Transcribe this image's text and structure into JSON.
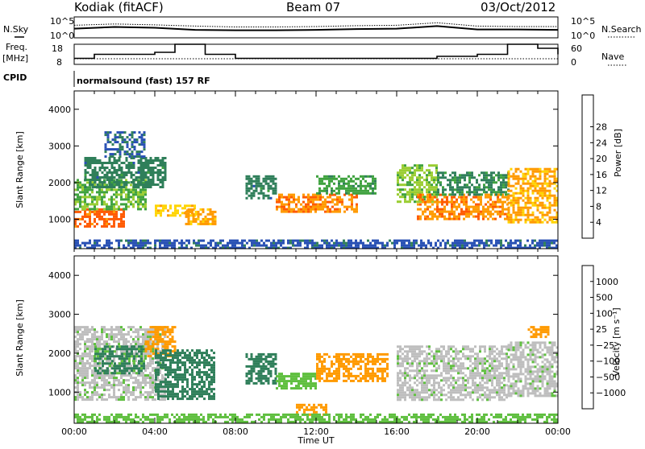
{
  "header": {
    "station": "Kodiak (fitACF)",
    "beam": "Beam 07",
    "date": "03/Oct/2012"
  },
  "strip_labels": {
    "nsky": "N.Sky",
    "nsearch": "N.Search",
    "freq_line1": "Freq.",
    "freq_line2": "[MHz]",
    "nave": "Nave",
    "cpid": "CPID",
    "mode": "normalsound (fast) 157 RF",
    "noise_left_top": "10^5",
    "noise_left_bottom": "10^0",
    "noise_right_top": "10^5",
    "noise_right_bottom": "10^0",
    "freq_left_top": "18",
    "freq_left_bottom": "8",
    "nave_right_top": "60",
    "nave_right_bottom": "0"
  },
  "colors": {
    "power_scale": [
      "#1a1aff",
      "#2850b4",
      "#2f7f5a",
      "#3fa23f",
      "#9acd32",
      "#ffd400",
      "#ff9a00",
      "#ff5a00",
      "#e00000"
    ],
    "velocity_scale": [
      "#e00000",
      "#ff5a00",
      "#ff9a00",
      "#bebebe",
      "#bebebe",
      "#5fbf3f",
      "#2f7f5a",
      "#1f5fa0",
      "#2020c0"
    ]
  },
  "chart_data": [
    {
      "type": "line",
      "name": "noise-strip",
      "ylabel_left": "N.Sky",
      "ylabel_right": "N.Search",
      "x": [
        "00:00",
        "02:00",
        "04:00",
        "06:00",
        "08:00",
        "10:00",
        "12:00",
        "14:00",
        "16:00",
        "18:00",
        "20:00",
        "22:00",
        "24:00"
      ],
      "series": [
        {
          "name": "N.Sky",
          "values": [
            2.2,
            2.6,
            2.4,
            1.9,
            1.8,
            1.8,
            1.9,
            2.1,
            2.2,
            2.8,
            2.0,
            2.0,
            1.9
          ]
        },
        {
          "name": "N.Search",
          "values": [
            3.0,
            3.3,
            3.1,
            2.8,
            2.6,
            2.6,
            2.7,
            2.9,
            3.0,
            3.6,
            2.8,
            2.7,
            2.7
          ]
        }
      ],
      "ylim": [
        0,
        5
      ]
    },
    {
      "type": "line",
      "name": "frequency-strip",
      "ylabel_left": "Freq. [MHz]",
      "ylabel_right": "Nave",
      "x": [
        "00:00",
        "01:00",
        "02:30",
        "04:00",
        "05:00",
        "06:30",
        "08:00",
        "10:00",
        "12:00",
        "14:00",
        "16:00",
        "18:00",
        "20:00",
        "21:30",
        "23:00",
        "24:00"
      ],
      "series": [
        {
          "name": "Freq.",
          "values": [
            11,
            13,
            13,
            14,
            18,
            13,
            11,
            11,
            11,
            11,
            11,
            12,
            13,
            18,
            16,
            13
          ]
        },
        {
          "name": "Nave",
          "values": [
            24,
            24,
            24,
            24,
            24,
            24,
            24,
            24,
            24,
            24,
            24,
            24,
            24,
            24,
            24,
            24
          ]
        }
      ],
      "ylim": [
        8,
        18
      ]
    },
    {
      "type": "heatmap",
      "name": "power-panel",
      "ylabel": "Slant Range [km]",
      "colorbar_label": "Power [dB]",
      "colorbar_ticks": [
        "4",
        "8",
        "12",
        "16",
        "20",
        "24",
        "28"
      ],
      "xlim": [
        0,
        24
      ],
      "ylim": [
        200,
        4500
      ],
      "yticks": [
        "1000",
        "2000",
        "3000",
        "4000"
      ],
      "regions": [
        {
          "t0": 0.0,
          "t1": 2.5,
          "r0": 800,
          "r1": 1300,
          "value": 26
        },
        {
          "t0": 0.0,
          "t1": 3.5,
          "r0": 1300,
          "r1": 2100,
          "value": 14
        },
        {
          "t0": 0.5,
          "t1": 4.5,
          "r0": 1900,
          "r1": 2700,
          "value": 9
        },
        {
          "t0": 1.5,
          "t1": 3.5,
          "r0": 2700,
          "r1": 3400,
          "value": 7
        },
        {
          "t0": 4.0,
          "t1": 6.0,
          "r0": 1100,
          "r1": 1400,
          "value": 20
        },
        {
          "t0": 5.5,
          "t1": 7.0,
          "r0": 900,
          "r1": 1300,
          "value": 22
        },
        {
          "t0": 8.5,
          "t1": 10.0,
          "r0": 1600,
          "r1": 2200,
          "value": 9
        },
        {
          "t0": 10.0,
          "t1": 14.0,
          "r0": 1200,
          "r1": 1700,
          "value": 24
        },
        {
          "t0": 12.0,
          "t1": 15.0,
          "r0": 1700,
          "r1": 2200,
          "value": 12
        },
        {
          "t0": 16.0,
          "t1": 18.0,
          "r0": 1500,
          "r1": 2500,
          "value": 15
        },
        {
          "t0": 17.0,
          "t1": 21.5,
          "r0": 1000,
          "r1": 1700,
          "value": 24
        },
        {
          "t0": 18.0,
          "t1": 21.5,
          "r0": 1700,
          "r1": 2300,
          "value": 10
        },
        {
          "t0": 21.5,
          "t1": 24.0,
          "r0": 900,
          "r1": 2400,
          "value": 22
        },
        {
          "t0": 0.0,
          "t1": 24.0,
          "r0": 250,
          "r1": 450,
          "value": 6
        }
      ]
    },
    {
      "type": "heatmap",
      "name": "velocity-panel",
      "ylabel": "Slant Range [km]",
      "xlabel": "Time UT",
      "colorbar_label": "Velocity [m s⁻¹]",
      "colorbar_ticks": [
        "1000",
        "500",
        "100",
        "25",
        "−25",
        "−100",
        "−500",
        "−1000"
      ],
      "xlim": [
        0,
        24
      ],
      "ylim": [
        200,
        4500
      ],
      "yticks": [
        "1000",
        "2000",
        "3000",
        "4000"
      ],
      "xticks": [
        "00:00",
        "04:00",
        "08:00",
        "12:00",
        "16:00",
        "20:00",
        "00:00"
      ],
      "regions": [
        {
          "t0": 0.0,
          "t1": 4.5,
          "r0": 800,
          "r1": 2700,
          "value": 0
        },
        {
          "t0": 1.0,
          "t1": 3.5,
          "r0": 1500,
          "r1": 2200,
          "value": 120
        },
        {
          "t0": 3.5,
          "t1": 5.0,
          "r0": 1900,
          "r1": 2700,
          "value": -200
        },
        {
          "t0": 4.0,
          "t1": 7.0,
          "r0": 800,
          "r1": 2100,
          "value": 300
        },
        {
          "t0": 8.5,
          "t1": 10.0,
          "r0": 1200,
          "r1": 2000,
          "value": 400
        },
        {
          "t0": 10.0,
          "t1": 12.0,
          "r0": 1100,
          "r1": 1500,
          "value": 60
        },
        {
          "t0": 12.0,
          "t1": 15.5,
          "r0": 1300,
          "r1": 2000,
          "value": -300
        },
        {
          "t0": 11.0,
          "t1": 12.5,
          "r0": 400,
          "r1": 700,
          "value": -150
        },
        {
          "t0": 16.0,
          "t1": 21.5,
          "r0": 800,
          "r1": 2200,
          "value": 0
        },
        {
          "t0": 21.5,
          "t1": 24.0,
          "r0": 900,
          "r1": 2300,
          "value": 0
        },
        {
          "t0": 22.5,
          "t1": 23.5,
          "r0": 2400,
          "r1": 2700,
          "value": -200
        },
        {
          "t0": 0.0,
          "t1": 24.0,
          "r0": 250,
          "r1": 450,
          "value": 60
        }
      ]
    }
  ]
}
